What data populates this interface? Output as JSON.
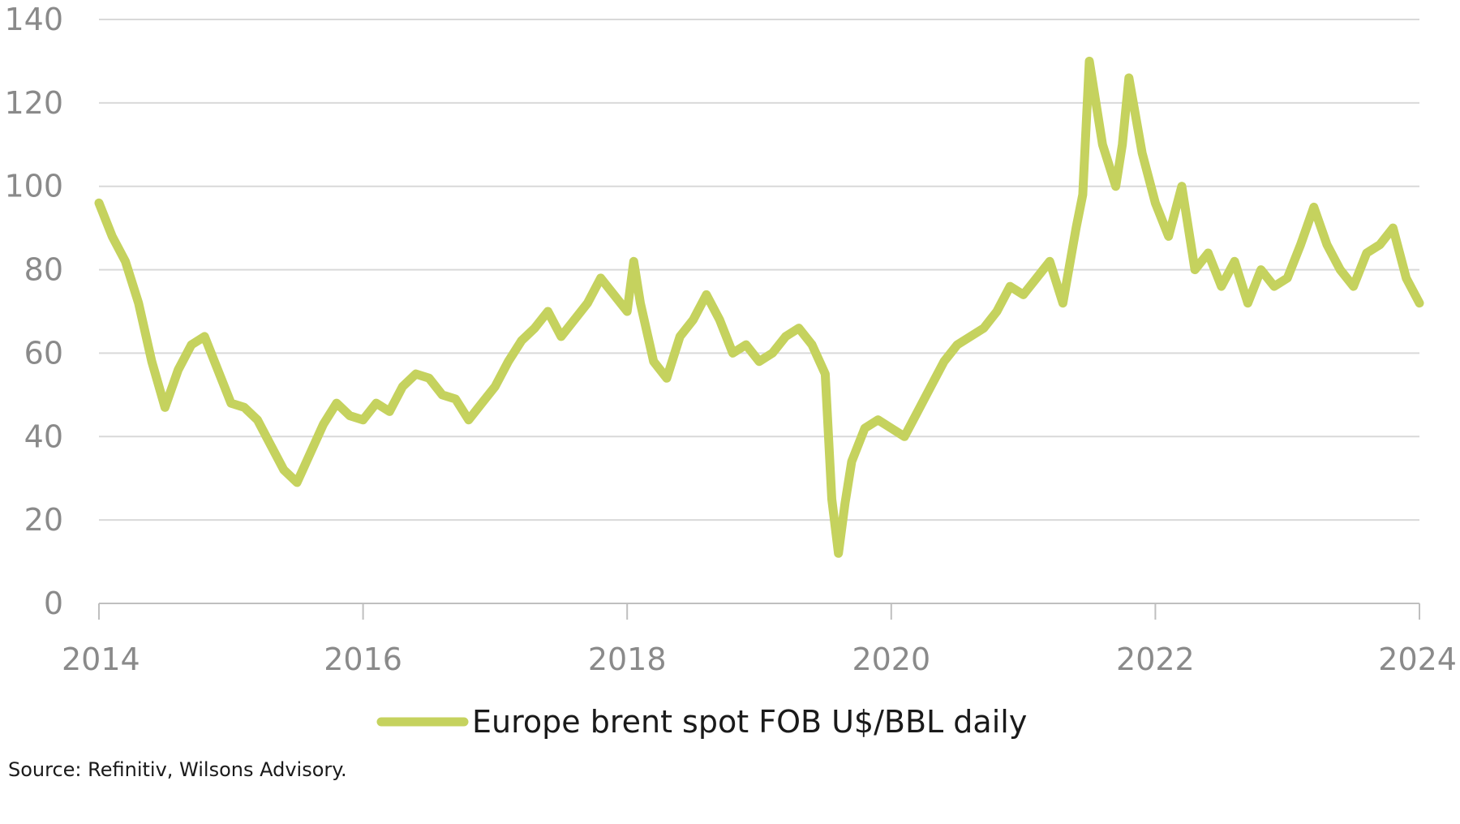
{
  "chart_data": {
    "type": "line",
    "title": "",
    "xlabel": "",
    "ylabel": "",
    "xlim": [
      2014,
      2024
    ],
    "ylim": [
      0,
      140
    ],
    "x_ticks": [
      "2014",
      "2016",
      "2018",
      "2020",
      "2022",
      "2024"
    ],
    "y_ticks": [
      "0",
      "20",
      "40",
      "60",
      "80",
      "100",
      "120",
      "140"
    ],
    "grid": true,
    "legend_position": "bottom-center",
    "series": [
      {
        "name": "Europe brent spot FOB U$/BBL daily",
        "color": "#c5d25e",
        "x": [
          2014.0,
          2014.1,
          2014.2,
          2014.3,
          2014.4,
          2014.5,
          2014.6,
          2014.7,
          2014.8,
          2014.9,
          2015.0,
          2015.1,
          2015.2,
          2015.3,
          2015.4,
          2015.5,
          2015.6,
          2015.7,
          2015.8,
          2015.9,
          2016.0,
          2016.1,
          2016.2,
          2016.3,
          2016.4,
          2016.5,
          2016.6,
          2016.7,
          2016.8,
          2016.9,
          2017.0,
          2017.1,
          2017.2,
          2017.3,
          2017.4,
          2017.5,
          2017.6,
          2017.7,
          2017.8,
          2017.9,
          2018.0,
          2018.05,
          2018.1,
          2018.2,
          2018.3,
          2018.4,
          2018.5,
          2018.6,
          2018.7,
          2018.8,
          2018.9,
          2019.0,
          2019.1,
          2019.2,
          2019.3,
          2019.4,
          2019.5,
          2019.55,
          2019.6,
          2019.65,
          2019.7,
          2019.8,
          2019.9,
          2020.0,
          2020.1,
          2020.2,
          2020.3,
          2020.4,
          2020.5,
          2020.6,
          2020.7,
          2020.8,
          2020.9,
          2021.0,
          2021.1,
          2021.2,
          2021.3,
          2021.4,
          2021.45,
          2021.5,
          2021.6,
          2021.7,
          2021.75,
          2021.8,
          2021.9,
          2022.0,
          2022.1,
          2022.2,
          2022.3,
          2022.4,
          2022.5,
          2022.6,
          2022.7,
          2022.8,
          2022.9,
          2023.0,
          2023.1,
          2023.2,
          2023.3,
          2023.4,
          2023.5,
          2023.6,
          2023.7,
          2023.8,
          2023.9,
          2024.0
        ],
        "values": [
          96,
          88,
          82,
          72,
          58,
          47,
          56,
          62,
          64,
          56,
          48,
          47,
          44,
          38,
          32,
          29,
          36,
          43,
          48,
          45,
          44,
          48,
          46,
          52,
          55,
          54,
          50,
          49,
          44,
          48,
          52,
          58,
          63,
          66,
          70,
          64,
          68,
          72,
          78,
          74,
          70,
          82,
          72,
          58,
          54,
          64,
          68,
          74,
          68,
          60,
          62,
          58,
          60,
          64,
          66,
          62,
          55,
          25,
          12,
          24,
          34,
          42,
          44,
          42,
          40,
          46,
          52,
          58,
          62,
          64,
          66,
          70,
          76,
          74,
          78,
          82,
          72,
          90,
          98,
          130,
          110,
          100,
          110,
          126,
          108,
          96,
          88,
          100,
          80,
          84,
          76,
          82,
          72,
          80,
          76,
          78,
          86,
          95,
          86,
          80,
          76,
          84,
          86,
          90,
          78,
          72
        ]
      }
    ]
  },
  "legend": {
    "label": "Europe brent spot FOB U$/BBL daily"
  },
  "source": "Source: Refinitiv, Wilsons Advisory."
}
